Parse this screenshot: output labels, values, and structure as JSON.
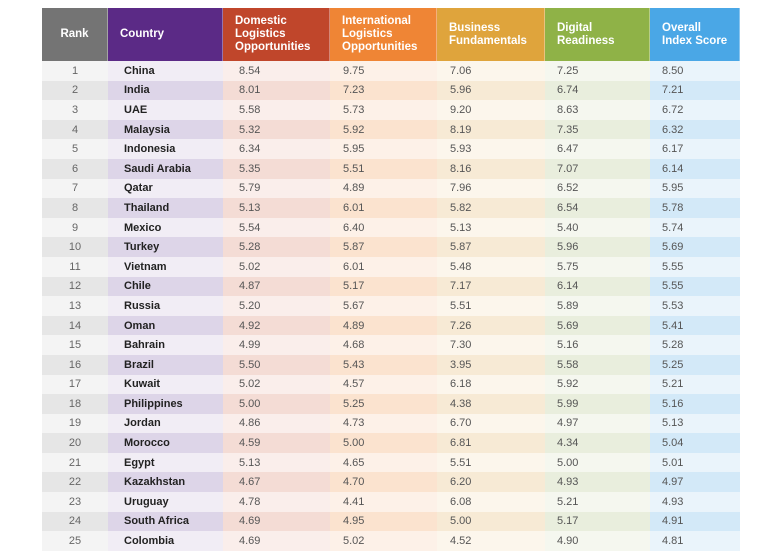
{
  "colors": {
    "rank": "#747474",
    "country": "#5b2a86",
    "domestic": "#c0462b",
    "international": "#ef8535",
    "business": "#dfa43c",
    "digital": "#8fb247",
    "overall": "#4aa7e6"
  },
  "headers": {
    "rank": "Rank",
    "country": "Country",
    "domestic": [
      "Domestic",
      "Logistics",
      "Opportunities"
    ],
    "international": [
      "International",
      "Logistics",
      "Opportunities"
    ],
    "business": [
      "Business",
      "Fundamentals"
    ],
    "digital": [
      "Digital",
      "Readiness"
    ],
    "overall": [
      "Overall",
      "Index Score"
    ]
  },
  "rows": [
    {
      "rank": "1",
      "country": "China",
      "domestic": "8.54",
      "international": "9.75",
      "business": "7.06",
      "digital": "7.25",
      "overall": "8.50"
    },
    {
      "rank": "2",
      "country": "India",
      "domestic": "8.01",
      "international": "7.23",
      "business": "5.96",
      "digital": "6.74",
      "overall": "7.21"
    },
    {
      "rank": "3",
      "country": "UAE",
      "domestic": "5.58",
      "international": "5.73",
      "business": "9.20",
      "digital": "8.63",
      "overall": "6.72"
    },
    {
      "rank": "4",
      "country": "Malaysia",
      "domestic": "5.32",
      "international": "5.92",
      "business": "8.19",
      "digital": "7.35",
      "overall": "6.32"
    },
    {
      "rank": "5",
      "country": "Indonesia",
      "domestic": "6.34",
      "international": "5.95",
      "business": "5.93",
      "digital": "6.47",
      "overall": "6.17"
    },
    {
      "rank": "6",
      "country": "Saudi Arabia",
      "domestic": "5.35",
      "international": "5.51",
      "business": "8.16",
      "digital": "7.07",
      "overall": "6.14"
    },
    {
      "rank": "7",
      "country": "Qatar",
      "domestic": "5.79",
      "international": "4.89",
      "business": "7.96",
      "digital": "6.52",
      "overall": "5.95"
    },
    {
      "rank": "8",
      "country": "Thailand",
      "domestic": "5.13",
      "international": "6.01",
      "business": "5.82",
      "digital": "6.54",
      "overall": "5.78"
    },
    {
      "rank": "9",
      "country": "Mexico",
      "domestic": "5.54",
      "international": "6.40",
      "business": "5.13",
      "digital": "5.40",
      "overall": "5.74"
    },
    {
      "rank": "10",
      "country": "Turkey",
      "domestic": "5.28",
      "international": "5.87",
      "business": "5.87",
      "digital": "5.96",
      "overall": "5.69"
    },
    {
      "rank": "11",
      "country": "Vietnam",
      "domestic": "5.02",
      "international": "6.01",
      "business": "5.48",
      "digital": "5.75",
      "overall": "5.55"
    },
    {
      "rank": "12",
      "country": "Chile",
      "domestic": "4.87",
      "international": "5.17",
      "business": "7.17",
      "digital": "6.14",
      "overall": "5.55"
    },
    {
      "rank": "13",
      "country": "Russia",
      "domestic": "5.20",
      "international": "5.67",
      "business": "5.51",
      "digital": "5.89",
      "overall": "5.53"
    },
    {
      "rank": "14",
      "country": "Oman",
      "domestic": "4.92",
      "international": "4.89",
      "business": "7.26",
      "digital": "5.69",
      "overall": "5.41"
    },
    {
      "rank": "15",
      "country": "Bahrain",
      "domestic": "4.99",
      "international": "4.68",
      "business": "7.30",
      "digital": "5.16",
      "overall": "5.28"
    },
    {
      "rank": "16",
      "country": "Brazil",
      "domestic": "5.50",
      "international": "5.43",
      "business": "3.95",
      "digital": "5.58",
      "overall": "5.25"
    },
    {
      "rank": "17",
      "country": "Kuwait",
      "domestic": "5.02",
      "international": "4.57",
      "business": "6.18",
      "digital": "5.92",
      "overall": "5.21"
    },
    {
      "rank": "18",
      "country": "Philippines",
      "domestic": "5.00",
      "international": "5.25",
      "business": "4.38",
      "digital": "5.99",
      "overall": "5.16"
    },
    {
      "rank": "19",
      "country": "Jordan",
      "domestic": "4.86",
      "international": "4.73",
      "business": "6.70",
      "digital": "4.97",
      "overall": "5.13"
    },
    {
      "rank": "20",
      "country": "Morocco",
      "domestic": "4.59",
      "international": "5.00",
      "business": "6.81",
      "digital": "4.34",
      "overall": "5.04"
    },
    {
      "rank": "21",
      "country": "Egypt",
      "domestic": "5.13",
      "international": "4.65",
      "business": "5.51",
      "digital": "5.00",
      "overall": "5.01"
    },
    {
      "rank": "22",
      "country": "Kazakhstan",
      "domestic": "4.67",
      "international": "4.70",
      "business": "6.20",
      "digital": "4.93",
      "overall": "4.97"
    },
    {
      "rank": "23",
      "country": "Uruguay",
      "domestic": "4.78",
      "international": "4.41",
      "business": "6.08",
      "digital": "5.21",
      "overall": "4.93"
    },
    {
      "rank": "24",
      "country": "South Africa",
      "domestic": "4.69",
      "international": "4.95",
      "business": "5.00",
      "digital": "5.17",
      "overall": "4.91"
    },
    {
      "rank": "25",
      "country": "Colombia",
      "domestic": "4.69",
      "international": "5.02",
      "business": "4.52",
      "digital": "4.90",
      "overall": "4.81"
    }
  ]
}
